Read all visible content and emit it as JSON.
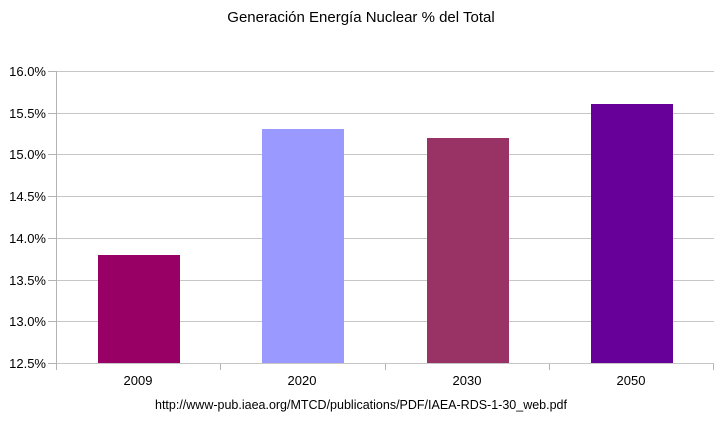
{
  "title": "Generación Energía Nuclear % del Total",
  "footer": {
    "url": "http://www-pub.iaea.org/MTCD/publications/PDF/IAEA-RDS-1-30_web.pdf"
  },
  "colors": {
    "background": "#ffffff",
    "gridline": "#c6c6c6",
    "axis": "#b3b3b3",
    "text": "#000000"
  },
  "chart_data": {
    "type": "bar",
    "title": "Generación Energía Nuclear % del Total",
    "categories": [
      "2009",
      "2020",
      "2030",
      "2050"
    ],
    "values": [
      13.8,
      15.3,
      15.2,
      15.6
    ],
    "bar_colors": [
      "#990066",
      "#9999FF",
      "#993366",
      "#660099"
    ],
    "xlabel": "",
    "ylabel": "",
    "ylim": [
      12.5,
      16.0
    ],
    "y_ticks": [
      {
        "label": "12.5%",
        "value": 12.5
      },
      {
        "label": "13.0%",
        "value": 13.0
      },
      {
        "label": "13.5%",
        "value": 13.5
      },
      {
        "label": "14.0%",
        "value": 14.0
      },
      {
        "label": "14.5%",
        "value": 14.5
      },
      {
        "label": "15.0%",
        "value": 15.0
      },
      {
        "label": "15.5%",
        "value": 15.5
      },
      {
        "label": "16.0%",
        "value": 16.0
      }
    ],
    "grid": "horizontal",
    "legend": "none",
    "source_note": "http://www-pub.iaea.org/MTCD/publications/PDF/IAEA-RDS-1-30_web.pdf"
  }
}
